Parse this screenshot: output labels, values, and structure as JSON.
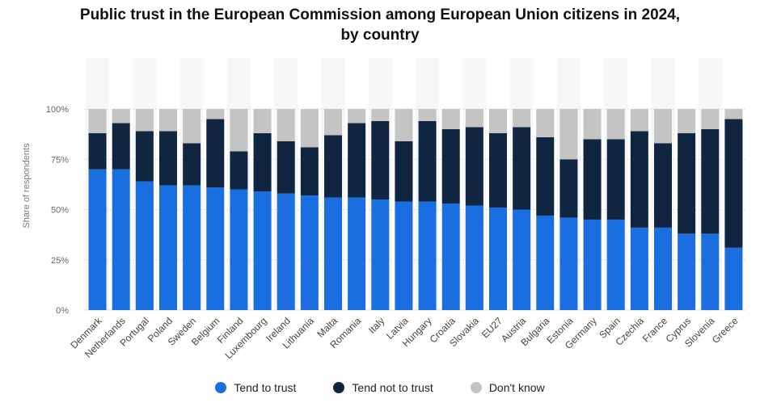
{
  "chart_data": {
    "type": "bar",
    "stacked": true,
    "title": "Public trust in the European Commission among European Union citizens in 2024, by country",
    "title_lines": [
      "Public trust in the European Commission among European Union citizens in 2024,",
      "by country"
    ],
    "ylabel": "Share of respondents",
    "xlabel": "",
    "ylim": [
      0,
      100
    ],
    "y_ticks": [
      "0%",
      "25%",
      "50%",
      "75%",
      "100%"
    ],
    "y_tick_values": [
      0,
      25,
      50,
      75,
      100
    ],
    "categories": [
      "Denmark",
      "Netherlands",
      "Portugal",
      "Poland",
      "Sweden",
      "Belgium",
      "Finland",
      "Luxembourg",
      "Ireland",
      "Lithuania",
      "Malta",
      "Romania",
      "Italy",
      "Latvia",
      "Hungary",
      "Croatia",
      "Slovakia",
      "EU27",
      "Austria",
      "Bulgaria",
      "Estonia",
      "Germany",
      "Spain",
      "Czechia",
      "France",
      "Cyprus",
      "Slovenia",
      "Greece"
    ],
    "series": [
      {
        "name": "Tend to trust",
        "color": "#1a6ee0",
        "values": [
          70,
          70,
          64,
          62,
          62,
          61,
          60,
          59,
          58,
          57,
          56,
          56,
          55,
          54,
          54,
          53,
          52,
          51,
          50,
          47,
          46,
          45,
          45,
          41,
          41,
          38,
          38,
          31
        ]
      },
      {
        "name": "Tend not to trust",
        "color": "#102640",
        "values": [
          18,
          23,
          25,
          27,
          21,
          34,
          19,
          29,
          26,
          24,
          31,
          37,
          39,
          30,
          40,
          37,
          39,
          37,
          41,
          39,
          29,
          40,
          40,
          48,
          42,
          50,
          52,
          64
        ]
      },
      {
        "name": "Don't know",
        "color": "#c4c4c4",
        "values": [
          12,
          7,
          11,
          11,
          17,
          5,
          21,
          12,
          16,
          19,
          13,
          7,
          6,
          16,
          6,
          10,
          9,
          12,
          9,
          14,
          25,
          15,
          15,
          11,
          17,
          12,
          10,
          5
        ]
      }
    ],
    "grid": true,
    "legend_position": "bottom"
  }
}
